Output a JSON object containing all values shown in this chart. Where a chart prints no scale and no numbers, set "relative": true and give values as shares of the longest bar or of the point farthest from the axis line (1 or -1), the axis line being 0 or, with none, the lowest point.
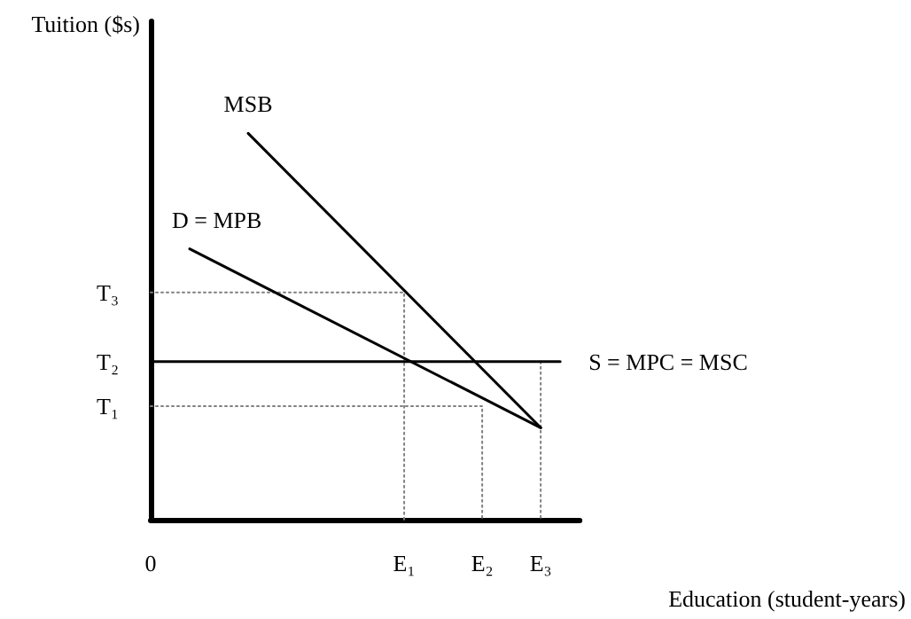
{
  "chart_data": {
    "type": "line",
    "xlabel": "Education (student-years)",
    "ylabel": "Tuition ($s)",
    "relative": true,
    "grid": false,
    "legend": false,
    "marker": "none",
    "categories": [
      "0",
      null,
      null,
      null,
      null,
      null,
      null,
      null,
      null,
      null,
      null,
      null,
      null,
      "E₁",
      null,
      null,
      null,
      "E₂",
      null,
      null,
      "E₃",
      null,
      null
    ],
    "annotations": [
      {
        "text": "T₁",
        "x": "0",
        "y": 0.294
      },
      {
        "text": "T₂",
        "x": "0",
        "y": 0.409
      },
      {
        "text": "T₃",
        "x": "0",
        "y": 0.588
      }
    ],
    "series": [
      {
        "name": "MSB",
        "color": "#000000",
        "values": [
          null,
          null,
          null,
          null,
          null,
          1,
          null,
          null,
          null,
          null,
          null,
          null,
          null,
          null,
          null,
          null,
          null,
          null,
          null,
          null,
          0.238,
          null,
          null
        ]
      },
      {
        "name": "D = MPB",
        "color": "#000000",
        "values": [
          null,
          null,
          0.701,
          null,
          null,
          null,
          null,
          null,
          null,
          null,
          null,
          null,
          null,
          null,
          null,
          null,
          null,
          null,
          null,
          null,
          0.238,
          null,
          null
        ]
      },
      {
        "name": "S = MPC = MSC",
        "color": "#000000",
        "values": [
          0.409,
          null,
          null,
          null,
          null,
          null,
          null,
          null,
          null,
          null,
          null,
          null,
          null,
          null,
          null,
          null,
          null,
          null,
          null,
          null,
          null,
          0.409,
          null
        ]
      },
      {
        "color": "#808080",
        "line_style": "dotted",
        "x": [
          "0",
          "E₁",
          "E₁"
        ],
        "values": [
          0.588,
          0.588,
          0
        ]
      },
      {
        "color": "#808080",
        "line_style": "dotted",
        "x": [
          "0",
          "E₂",
          "E₂"
        ],
        "values": [
          0.294,
          0.294,
          0
        ]
      },
      {
        "color": "#808080",
        "line_style": "dotted",
        "x": [
          "E₃",
          "E₃"
        ],
        "values": [
          0.409,
          0
        ]
      }
    ]
  }
}
